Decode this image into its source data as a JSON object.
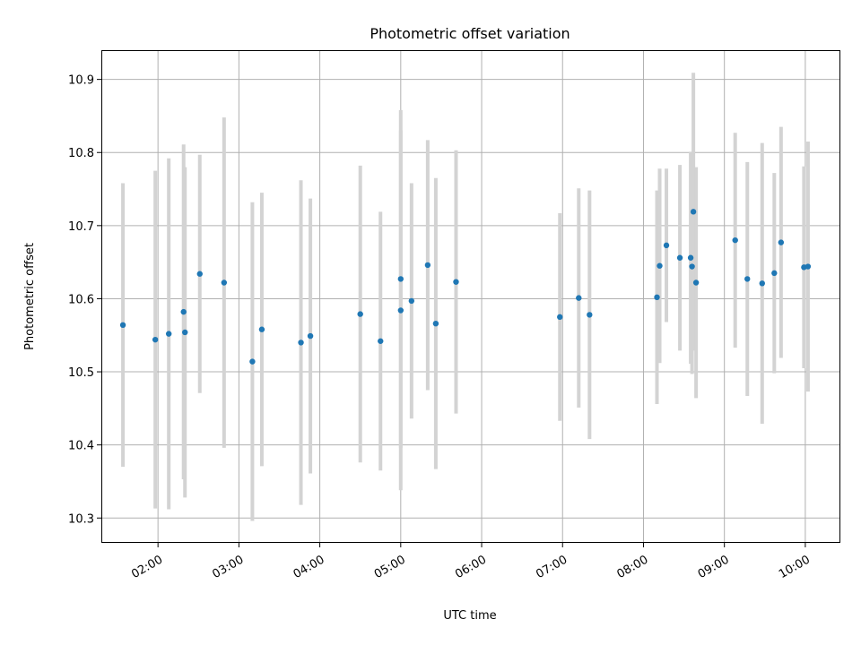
{
  "chart_data": {
    "type": "scatter",
    "title": "Photometric offset variation",
    "xlabel": "UTC time",
    "ylabel": "Photometric offset",
    "x_axis_kind": "time",
    "xlim": [
      "01:18",
      "10:26"
    ],
    "ylim": [
      10.266,
      10.94
    ],
    "x_ticks": [
      "02:00",
      "03:00",
      "04:00",
      "05:00",
      "06:00",
      "07:00",
      "08:00",
      "09:00",
      "10:00"
    ],
    "y_ticks": [
      "10.3",
      "10.4",
      "10.5",
      "10.6",
      "10.7",
      "10.8",
      "10.9"
    ],
    "grid": true,
    "legend": "none",
    "colors": {
      "marker": "#1f77b4",
      "errorbar": "#d3d3d3",
      "grid": "#b0b0b0",
      "axes": "#000000"
    },
    "points": [
      {
        "x": "01:34",
        "y": 10.564,
        "err": 0.194
      },
      {
        "x": "01:58",
        "y": 10.544,
        "err": 0.231
      },
      {
        "x": "02:08",
        "y": 10.552,
        "err": 0.24
      },
      {
        "x": "02:19",
        "y": 10.582,
        "err": 0.229
      },
      {
        "x": "02:20",
        "y": 10.554,
        "err": 0.226
      },
      {
        "x": "02:31",
        "y": 10.634,
        "err": 0.163
      },
      {
        "x": "02:49",
        "y": 10.622,
        "err": 0.226
      },
      {
        "x": "03:10",
        "y": 10.514,
        "err": 0.218
      },
      {
        "x": "03:17",
        "y": 10.558,
        "err": 0.187
      },
      {
        "x": "03:46",
        "y": 10.54,
        "err": 0.222
      },
      {
        "x": "03:53",
        "y": 10.549,
        "err": 0.188
      },
      {
        "x": "04:30",
        "y": 10.579,
        "err": 0.203
      },
      {
        "x": "04:45",
        "y": 10.542,
        "err": 0.177
      },
      {
        "x": "05:00",
        "y": 10.584,
        "err": 0.246
      },
      {
        "x": "05:00",
        "y": 10.627,
        "err": 0.231
      },
      {
        "x": "05:08",
        "y": 10.597,
        "err": 0.161
      },
      {
        "x": "05:20",
        "y": 10.646,
        "err": 0.171
      },
      {
        "x": "05:26",
        "y": 10.566,
        "err": 0.199
      },
      {
        "x": "05:41",
        "y": 10.623,
        "err": 0.18
      },
      {
        "x": "06:58",
        "y": 10.575,
        "err": 0.142
      },
      {
        "x": "07:12",
        "y": 10.601,
        "err": 0.15
      },
      {
        "x": "07:20",
        "y": 10.578,
        "err": 0.17
      },
      {
        "x": "08:10",
        "y": 10.602,
        "err": 0.146
      },
      {
        "x": "08:12",
        "y": 10.645,
        "err": 0.133
      },
      {
        "x": "08:17",
        "y": 10.673,
        "err": 0.105
      },
      {
        "x": "08:27",
        "y": 10.656,
        "err": 0.127
      },
      {
        "x": "08:35",
        "y": 10.656,
        "err": 0.145
      },
      {
        "x": "08:36",
        "y": 10.644,
        "err": 0.147
      },
      {
        "x": "08:37",
        "y": 10.719,
        "err": 0.19
      },
      {
        "x": "08:39",
        "y": 10.622,
        "err": 0.158
      },
      {
        "x": "09:08",
        "y": 10.68,
        "err": 0.147
      },
      {
        "x": "09:17",
        "y": 10.627,
        "err": 0.16
      },
      {
        "x": "09:28",
        "y": 10.621,
        "err": 0.192
      },
      {
        "x": "09:37",
        "y": 10.635,
        "err": 0.137
      },
      {
        "x": "09:42",
        "y": 10.677,
        "err": 0.158
      },
      {
        "x": "09:59",
        "y": 10.643,
        "err": 0.138
      },
      {
        "x": "10:02",
        "y": 10.644,
        "err": 0.171
      }
    ]
  }
}
